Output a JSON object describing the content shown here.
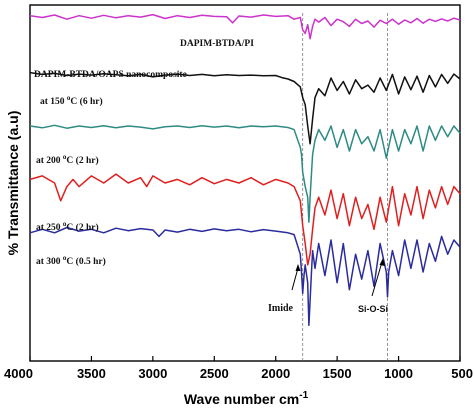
{
  "chart_data": {
    "type": "line",
    "title": "",
    "xlabel": "Wave number cm",
    "xlabel_superscript": "-1",
    "ylabel": "% Transmittance (a.u)",
    "xlim": [
      4000,
      500
    ],
    "x_ticks": [
      "4000",
      "3500",
      "3000",
      "2500",
      "2000",
      "1500",
      "1000",
      "500"
    ],
    "grid": false,
    "reference_lines": [
      1780,
      1090
    ],
    "series": [
      {
        "name": "DAPIM-BTDA/PI",
        "color": "#cc33cc",
        "x": [
          4000,
          3900,
          3800,
          3700,
          3600,
          3500,
          3400,
          3300,
          3200,
          3100,
          3000,
          2900,
          2800,
          2700,
          2600,
          2500,
          2400,
          2350,
          2300,
          2200,
          2100,
          2000,
          1900,
          1850,
          1800,
          1780,
          1760,
          1740,
          1720,
          1700,
          1680,
          1650,
          1600,
          1550,
          1500,
          1450,
          1400,
          1350,
          1300,
          1250,
          1200,
          1150,
          1100,
          1050,
          1000,
          950,
          900,
          850,
          800,
          750,
          700,
          650,
          600,
          550,
          500
        ],
        "y": [
          97,
          96.5,
          97.2,
          96,
          97,
          96.3,
          97.1,
          96.4,
          97,
          96.6,
          97.3,
          96.2,
          97,
          96.5,
          97.1,
          96.8,
          96.7,
          95,
          96.9,
          96.6,
          97.2,
          96.8,
          97,
          96,
          96.5,
          93,
          92,
          94.5,
          90.5,
          94,
          96,
          95.2,
          96.5,
          94.2,
          96,
          95.3,
          94,
          96,
          94.8,
          95.5,
          93.8,
          95.7,
          94.8,
          96,
          94.6,
          95.8,
          95,
          96.2,
          94.9,
          96,
          95.4,
          96.1,
          95.5,
          96.3,
          95.8
        ]
      },
      {
        "name": "DAPIM-BTDA/OAPS nanocomposite (150 °C, 6 hr)",
        "color": "#111111",
        "x": [
          4000,
          3900,
          3800,
          3700,
          3600,
          3500,
          3400,
          3300,
          3200,
          3100,
          3000,
          2900,
          2800,
          2700,
          2600,
          2500,
          2400,
          2300,
          2200,
          2100,
          2000,
          1950,
          1900,
          1850,
          1800,
          1780,
          1760,
          1740,
          1720,
          1700,
          1680,
          1650,
          1600,
          1550,
          1500,
          1450,
          1400,
          1350,
          1300,
          1250,
          1200,
          1150,
          1100,
          1050,
          1000,
          950,
          900,
          850,
          800,
          750,
          700,
          650,
          600,
          550,
          500
        ],
        "y": [
          81,
          80.5,
          80.8,
          80.2,
          80.6,
          80.3,
          80.7,
          80.4,
          80.1,
          80.5,
          79.8,
          80.3,
          80.6,
          80.2,
          80.5,
          80.1,
          80.4,
          80.2,
          80.3,
          80.1,
          80.2,
          79.6,
          79.2,
          78.5,
          77,
          74,
          72,
          66,
          61,
          68,
          74,
          76.5,
          74.5,
          79.5,
          76,
          78.5,
          75,
          79,
          76.5,
          77.5,
          75.5,
          79.5,
          76,
          80.5,
          75,
          79.8,
          76.2,
          80,
          75.5,
          80.2,
          77,
          80.5,
          78,
          80.6,
          79.2
        ]
      },
      {
        "name": "at 200 °C (2 hr)",
        "color": "#2e8b84",
        "x": [
          4000,
          3900,
          3800,
          3700,
          3600,
          3500,
          3400,
          3300,
          3200,
          3100,
          3000,
          2900,
          2800,
          2700,
          2600,
          2500,
          2400,
          2300,
          2200,
          2100,
          2000,
          1900,
          1850,
          1800,
          1790,
          1780,
          1760,
          1740,
          1730,
          1720,
          1700,
          1680,
          1650,
          1600,
          1550,
          1500,
          1450,
          1400,
          1350,
          1300,
          1250,
          1200,
          1150,
          1100,
          1050,
          1000,
          950,
          900,
          850,
          800,
          750,
          700,
          650,
          600,
          550,
          500
        ],
        "y": [
          66,
          65.5,
          66.2,
          65.4,
          66,
          65.6,
          66.1,
          65.5,
          66,
          65.7,
          65.2,
          65.8,
          66,
          65.6,
          66.1,
          65.7,
          66,
          65.5,
          66,
          65.8,
          66,
          65.6,
          65,
          60,
          58,
          53,
          49,
          46,
          39,
          46,
          58,
          62,
          65,
          62,
          66,
          60,
          65,
          59,
          65,
          61,
          63,
          59,
          65,
          57,
          65,
          59,
          65,
          61,
          66,
          59,
          66,
          62,
          66,
          63,
          66,
          64
        ]
      },
      {
        "name": "at 250 °C (2 hr)",
        "color": "#e02020",
        "x": [
          4000,
          3900,
          3800,
          3750,
          3700,
          3650,
          3600,
          3500,
          3400,
          3300,
          3200,
          3100,
          3050,
          3000,
          2900,
          2800,
          2700,
          2600,
          2500,
          2400,
          2300,
          2200,
          2100,
          2000,
          1900,
          1850,
          1800,
          1780,
          1760,
          1740,
          1720,
          1700,
          1680,
          1650,
          1600,
          1550,
          1500,
          1450,
          1400,
          1350,
          1300,
          1250,
          1200,
          1150,
          1100,
          1050,
          1000,
          950,
          900,
          850,
          800,
          750,
          700,
          650,
          600,
          550,
          500
        ],
        "y": [
          51,
          52,
          50,
          45,
          49,
          51,
          49,
          52,
          50,
          52.5,
          50,
          51.5,
          49,
          52,
          50,
          51,
          49.5,
          51.5,
          49.8,
          51,
          50,
          51.5,
          49.5,
          51,
          50,
          49,
          45,
          38,
          33,
          27,
          30,
          37,
          43,
          46,
          41,
          48,
          40,
          47,
          38,
          46,
          40,
          44,
          37,
          46,
          39,
          49,
          38,
          47,
          41,
          49,
          40,
          48,
          43,
          49,
          44,
          49,
          47
        ]
      },
      {
        "name": "at 300 °C (0.5 hr)",
        "color": "#2b2b9e",
        "x": [
          4000,
          3900,
          3800,
          3700,
          3600,
          3500,
          3400,
          3300,
          3200,
          3100,
          3000,
          2950,
          2900,
          2800,
          2700,
          2600,
          2500,
          2400,
          2300,
          2200,
          2100,
          2000,
          1900,
          1850,
          1800,
          1790,
          1780,
          1770,
          1760,
          1740,
          1730,
          1720,
          1710,
          1700,
          1680,
          1650,
          1600,
          1550,
          1500,
          1450,
          1400,
          1350,
          1300,
          1250,
          1200,
          1150,
          1100,
          1090,
          1080,
          1050,
          1000,
          950,
          900,
          850,
          800,
          750,
          700,
          650,
          600,
          550,
          500
        ],
        "y": [
          36,
          37,
          36,
          37.5,
          36.5,
          37,
          36,
          37.3,
          36.6,
          37.2,
          36.8,
          35,
          36.8,
          36.2,
          37,
          36.4,
          37.1,
          36.6,
          37,
          36.3,
          36.9,
          36.5,
          36,
          35.5,
          30,
          25,
          19,
          24,
          27,
          22,
          10,
          17,
          24,
          31,
          26,
          33,
          24,
          34,
          22,
          33,
          20,
          30,
          23,
          31,
          21,
          33,
          25,
          18,
          25,
          31,
          24,
          34,
          26,
          34,
          25,
          33,
          28,
          35,
          30,
          34,
          32
        ]
      }
    ],
    "annotations": [
      {
        "text": "DAPIM-BTDA/PI"
      },
      {
        "text": "DAPIM-BTDA/OAPS nanocomposite"
      },
      {
        "text": "at 150 ",
        "sup": "o",
        "tail": "C (6 hr)"
      },
      {
        "text": "at 200 ",
        "sup": "o",
        "tail": "C (2 hr)"
      },
      {
        "text": "at 250 ",
        "sup": "o",
        "tail": "C (2 hr)"
      },
      {
        "text": "at 300 ",
        "sup": "o",
        "tail": "C (0.5 hr)"
      },
      {
        "text": "Imide"
      },
      {
        "text": "Si-O-Si"
      }
    ]
  }
}
